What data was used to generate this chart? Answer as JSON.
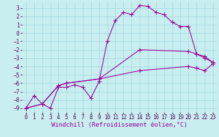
{
  "xlabel": "Windchill (Refroidissement éolien,°C)",
  "bg_color": "#c8eef0",
  "grid_color": "#a0d8dc",
  "line_color": "#990099",
  "marker": "+",
  "markersize": 4,
  "linewidth": 0.8,
  "xlim": [
    -0.5,
    23.5
  ],
  "ylim": [
    -9.5,
    3.8
  ],
  "xticks": [
    0,
    1,
    2,
    3,
    4,
    5,
    6,
    7,
    8,
    9,
    10,
    11,
    12,
    13,
    14,
    15,
    16,
    17,
    18,
    19,
    20,
    21,
    22,
    23
  ],
  "yticks": [
    3,
    2,
    1,
    0,
    -1,
    -2,
    -3,
    -4,
    -5,
    -6,
    -7,
    -8,
    -9
  ],
  "curve1_x": [
    0,
    1,
    2,
    3,
    4,
    5,
    6,
    7,
    8,
    9,
    10,
    11,
    12,
    13,
    14,
    15,
    16,
    17,
    18,
    19,
    20,
    21,
    22,
    23
  ],
  "curve1_y": [
    -9,
    -7.5,
    -8.5,
    -9,
    -6.5,
    -6.5,
    -6.2,
    -6.5,
    -7.8,
    -5.8,
    -1.0,
    1.5,
    2.5,
    2.2,
    3.3,
    3.2,
    2.5,
    2.2,
    1.3,
    0.8,
    0.8,
    -2.5,
    -2.8,
    -3.5
  ],
  "curve2_x": [
    0,
    2,
    4,
    5,
    9,
    14,
    20,
    21,
    22,
    23
  ],
  "curve2_y": [
    -9,
    -8.5,
    -6.3,
    -6.0,
    -5.5,
    -2.0,
    -2.2,
    -2.5,
    -3.0,
    -3.5
  ],
  "curve3_x": [
    0,
    2,
    4,
    5,
    9,
    14,
    20,
    21,
    22,
    23
  ],
  "curve3_y": [
    -9,
    -8.5,
    -6.3,
    -6.0,
    -5.5,
    -4.5,
    -4.0,
    -4.2,
    -4.5,
    -3.7
  ],
  "xlabel_fontsize": 6.5,
  "tick_fontsize": 5.5
}
